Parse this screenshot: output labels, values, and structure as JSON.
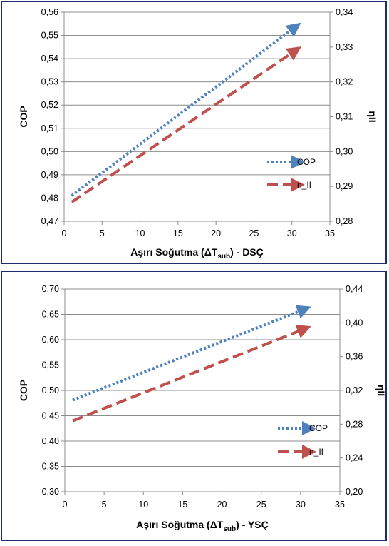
{
  "chart_data": [
    {
      "type": "line",
      "xlabel": "Aşırı Soğutma (ΔT",
      "xlabel_sub": "sub",
      "xlabel_suffix": ") - DSÇ",
      "ylabel": "COP",
      "y2label": "ηII",
      "xlim": [
        0,
        35
      ],
      "ylim": [
        0.47,
        0.56
      ],
      "y2lim": [
        0.28,
        0.34
      ],
      "x_ticks": [
        "0",
        "5",
        "10",
        "15",
        "20",
        "25",
        "30",
        "35"
      ],
      "y_ticks": [
        "0,47",
        "0,48",
        "0,49",
        "0,50",
        "0,51",
        "0,52",
        "0,53",
        "0,54",
        "0,55",
        "0,56"
      ],
      "y2_ticks": [
        "0,28",
        "0,29",
        "0,30",
        "0,31",
        "0,32",
        "0,33",
        "0,34"
      ],
      "grid": true,
      "legend_position": "right",
      "series": [
        {
          "name": "COP",
          "axis": "left",
          "style": "dotted",
          "color": "#4f81bd",
          "x": [
            1,
            30
          ],
          "y": [
            0.481,
            0.5525
          ]
        },
        {
          "name": "n_II",
          "axis": "right",
          "style": "dashed",
          "color": "#c0504d",
          "x": [
            1,
            30
          ],
          "y": [
            0.2855,
            0.3283
          ]
        }
      ]
    },
    {
      "type": "line",
      "xlabel": "Aşırı Soğutma (ΔT",
      "xlabel_sub": "sub",
      "xlabel_suffix": ") - YSÇ",
      "ylabel": "COP",
      "y2label": "ηII",
      "xlim": [
        0,
        35
      ],
      "ylim": [
        0.3,
        0.7
      ],
      "y2lim": [
        0.2,
        0.44
      ],
      "x_ticks": [
        "0",
        "5",
        "10",
        "15",
        "20",
        "25",
        "30",
        "35"
      ],
      "y_ticks": [
        "0,30",
        "0,35",
        "0,40",
        "0,45",
        "0,50",
        "0,55",
        "0,60",
        "0,65",
        "0,70"
      ],
      "y2_ticks": [
        "0,20",
        "0,24",
        "0,28",
        "0,32",
        "0,36",
        "0,40",
        "0,44"
      ],
      "grid": true,
      "legend_position": "right",
      "series": [
        {
          "name": "COP",
          "axis": "left",
          "style": "dotted",
          "color": "#4f81bd",
          "x": [
            1,
            30
          ],
          "y": [
            0.481,
            0.657
          ]
        },
        {
          "name": "n_II",
          "axis": "right",
          "style": "dashed",
          "color": "#c0504d",
          "x": [
            1,
            30
          ],
          "y": [
            0.284,
            0.391
          ]
        }
      ]
    }
  ]
}
